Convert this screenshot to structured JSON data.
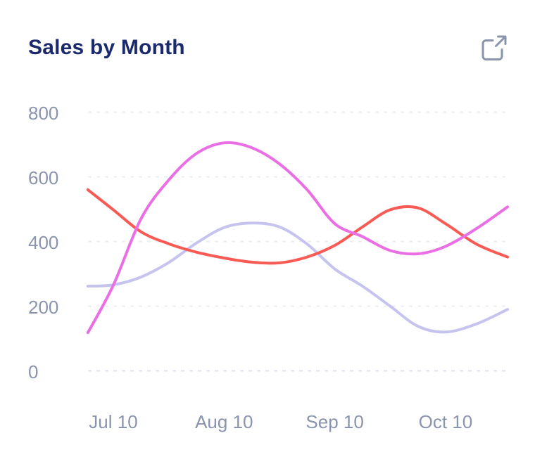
{
  "header": {
    "title": "Sales by Month"
  },
  "colors": {
    "title_text": "#1A2A6C",
    "axis_label_text": "#8A94AC",
    "grid": "#E9EDF4",
    "grid_zero": "#DFE0F0",
    "icon": "#8993A9",
    "background": "#FFFFFF"
  },
  "chart_data": {
    "type": "line",
    "title": "Sales by Month",
    "xlabel": "",
    "ylabel": "",
    "x_axis_unit": "months offset from Jul 10 (0 = Jul 10)",
    "x_tick_labels": [
      "Jul 10",
      "Aug 10",
      "Sep 10",
      "Oct 10"
    ],
    "x_tick_positions": [
      0,
      1,
      2,
      3
    ],
    "x_range": [
      -0.23,
      3.56
    ],
    "y_tick_labels": [
      "800",
      "600",
      "400",
      "200",
      "0"
    ],
    "ylim": [
      0,
      800
    ],
    "grid": "horizontal dashed",
    "legend_position": "none",
    "line_width": 4,
    "smooth": true,
    "series": [
      {
        "name": "lavender-series",
        "color": "#C6C4EF",
        "x": [
          -0.23,
          0,
          0.25,
          0.5,
          0.75,
          1,
          1.25,
          1.5,
          1.75,
          2,
          2.25,
          2.5,
          2.75,
          3,
          3.28,
          3.56
        ],
        "values": [
          262,
          266,
          290,
          335,
          395,
          443,
          457,
          445,
          392,
          315,
          262,
          200,
          138,
          120,
          145,
          190
        ]
      },
      {
        "name": "red-series",
        "color": "#F85A54",
        "x": [
          -0.23,
          0,
          0.25,
          0.5,
          0.75,
          1,
          1.25,
          1.5,
          1.75,
          2,
          2.25,
          2.5,
          2.75,
          3,
          3.28,
          3.56
        ],
        "values": [
          560,
          498,
          430,
          393,
          367,
          349,
          336,
          334,
          352,
          388,
          445,
          498,
          504,
          455,
          392,
          352
        ]
      },
      {
        "name": "magenta-series",
        "color": "#EA6FE4",
        "x": [
          -0.23,
          0,
          0.25,
          0.5,
          0.75,
          1,
          1.25,
          1.5,
          1.75,
          2,
          2.25,
          2.5,
          2.75,
          3,
          3.28,
          3.56
        ],
        "values": [
          118,
          265,
          470,
          590,
          672,
          705,
          690,
          640,
          560,
          455,
          415,
          372,
          362,
          385,
          440,
          507
        ]
      }
    ]
  }
}
